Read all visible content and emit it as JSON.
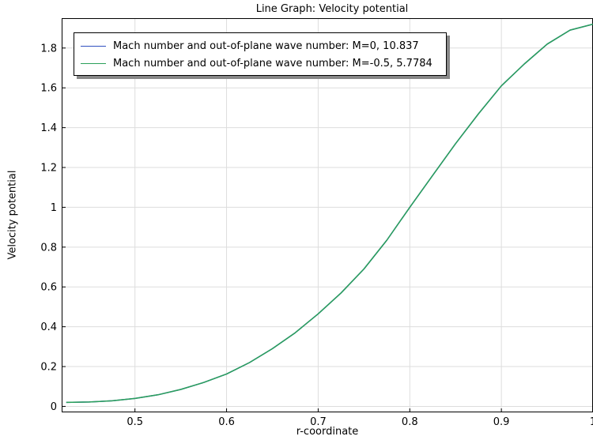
{
  "chart_data": {
    "type": "line",
    "title": "Line Graph: Velocity potential",
    "xlabel": "r-coordinate",
    "ylabel": "Velocity potential",
    "xlim": [
      0.42,
      1.0
    ],
    "ylim": [
      -0.03,
      1.95
    ],
    "xticks": [
      0.5,
      0.6,
      0.7,
      0.8,
      0.9,
      1
    ],
    "xtick_labels": [
      "0.5",
      "0.6",
      "0.7",
      "0.8",
      "0.9",
      "1"
    ],
    "yticks": [
      0,
      0.2,
      0.4,
      0.6,
      0.8,
      1,
      1.2,
      1.4,
      1.6,
      1.8
    ],
    "ytick_labels": [
      "0",
      "0.2",
      "0.4",
      "0.6",
      "0.8",
      "1",
      "1.2",
      "1.4",
      "1.6",
      "1.8"
    ],
    "grid": true,
    "legend_position": "top-left",
    "series": [
      {
        "name": "Mach number and out-of-plane wave number: M=0, 10.837",
        "color": "#3050c0",
        "x": [
          0.425,
          0.45,
          0.475,
          0.5,
          0.525,
          0.55,
          0.575,
          0.6,
          0.625,
          0.65,
          0.675,
          0.7,
          0.725,
          0.75,
          0.775,
          0.8,
          0.825,
          0.85,
          0.875,
          0.9,
          0.925,
          0.95,
          0.975,
          1.0
        ],
        "y": [
          0.02,
          0.022,
          0.028,
          0.04,
          0.058,
          0.085,
          0.12,
          0.163,
          0.22,
          0.29,
          0.37,
          0.465,
          0.57,
          0.69,
          0.835,
          1.0,
          1.16,
          1.32,
          1.47,
          1.61,
          1.72,
          1.82,
          1.89,
          1.92
        ]
      },
      {
        "name": "Mach number and out-of-plane wave number: M=-0.5, 5.7784",
        "color": "#2aa05a",
        "x": [
          0.425,
          0.45,
          0.475,
          0.5,
          0.525,
          0.55,
          0.575,
          0.6,
          0.625,
          0.65,
          0.675,
          0.7,
          0.725,
          0.75,
          0.775,
          0.8,
          0.825,
          0.85,
          0.875,
          0.9,
          0.925,
          0.95,
          0.975,
          1.0
        ],
        "y": [
          0.02,
          0.022,
          0.028,
          0.04,
          0.058,
          0.085,
          0.12,
          0.163,
          0.22,
          0.29,
          0.37,
          0.465,
          0.57,
          0.69,
          0.835,
          1.0,
          1.16,
          1.32,
          1.47,
          1.61,
          1.72,
          1.82,
          1.89,
          1.92
        ]
      }
    ]
  }
}
